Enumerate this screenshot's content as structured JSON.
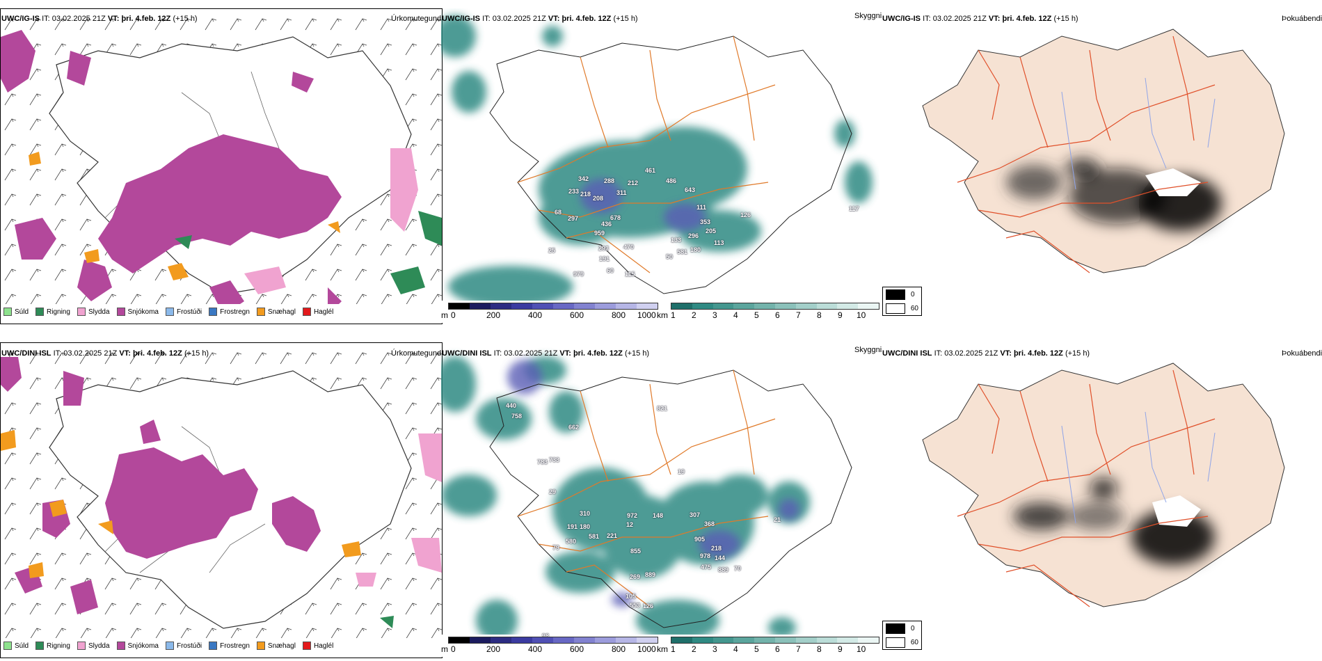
{
  "colors": {
    "precip_snow": "#b3489b",
    "precip_rain": "#2e8b57",
    "precip_sleet": "#f0a3d0",
    "precip_snowhail": "#f29b1e",
    "precip_drizzle": "#8ee28e",
    "precip_freezing_drizzle": "#8bb9ea",
    "precip_freezing_rain": "#3a78c2",
    "precip_hail": "#e31a1c",
    "cloud": "#2f8a83",
    "road": "#e06a1a",
    "land": "#f6e2d3",
    "river": "#8fa4e8"
  },
  "rows": [
    {
      "model": "UWC/IG-IS",
      "it_label": "IT:",
      "it_value": "03.02.2025 21Z",
      "vt_label": "VT:",
      "vt_value": "þri. 4.feb. 12Z",
      "lead": "(+15 h)",
      "precip_title": "Úrkomutegund",
      "cloud_title": "Skyggni",
      "fog_title": "Þokuábendi",
      "cloud_labels": [
        "342",
        "288",
        "212",
        "461",
        "486",
        "643",
        "233",
        "218",
        "208",
        "311",
        "111",
        "126",
        "117",
        "68",
        "297",
        "678",
        "353",
        "436",
        "205",
        "959",
        "133",
        "293",
        "470",
        "296",
        "113",
        "25",
        "581",
        "180",
        "191",
        "979",
        "60",
        "115",
        "50"
      ]
    },
    {
      "model": "UWC/DINI ISL",
      "it_label": "IT:",
      "it_value": "03.02.2025 21Z",
      "vt_label": "VT:",
      "vt_value": "þri. 4.feb. 12Z",
      "lead": "(+15 h)",
      "precip_title": "Úrkomutegund",
      "cloud_title": "Skyggni",
      "fog_title": "Þokuábendi",
      "cloud_labels": [
        "440",
        "758",
        "662",
        "783",
        "733",
        "29",
        "19",
        "310",
        "972",
        "148",
        "307",
        "368",
        "191",
        "180",
        "581",
        "221",
        "905",
        "12",
        "21",
        "580",
        "79",
        "855",
        "218",
        "144",
        "978",
        "475",
        "889",
        "70",
        "269",
        "889",
        "105",
        "553",
        "126",
        "98",
        "821"
      ]
    }
  ],
  "precip_legend": [
    "Súld",
    "Rigning",
    "Slydda",
    "Snjókoma",
    "Frostúði",
    "Frostregn",
    "Snæhagl",
    "Haglél"
  ],
  "height_bar": {
    "unit": "m",
    "ticks": [
      "0",
      "200",
      "400",
      "600",
      "800",
      "1000"
    ]
  },
  "cloud_bar": {
    "unit": "km",
    "ticks": [
      "1",
      "2",
      "3",
      "4",
      "5",
      "6",
      "7",
      "8",
      "9",
      "10"
    ]
  },
  "fog_legend": {
    "dark": "0",
    "light": "60"
  }
}
